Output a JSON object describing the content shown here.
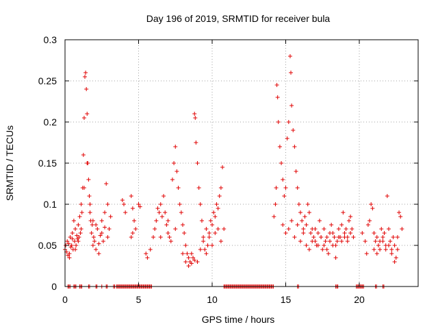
{
  "chart_data": {
    "type": "scatter",
    "title": "Day 196 of 2019, SRMTID for receiver bula",
    "xlabel": "GPS time / hours",
    "ylabel": "SRMTID / TECUs",
    "xlim": [
      0,
      24
    ],
    "ylim": [
      0,
      0.3
    ],
    "xticks": [
      0,
      5,
      10,
      15,
      20
    ],
    "xtick_labels": [
      "0",
      "5",
      "10",
      "15",
      "20"
    ],
    "yticks": [
      0,
      0.05,
      0.1,
      0.15,
      0.2,
      0.25,
      0.3
    ],
    "ytick_labels": [
      "0",
      "0.05",
      "0.1",
      "0.15",
      "0.2",
      "0.25",
      "0.3"
    ],
    "grid": true,
    "legend": "none",
    "marker": "plus",
    "color": "#e00000",
    "series": [
      {
        "name": "SRMTID",
        "points": [
          [
            0.0,
            0.045
          ],
          [
            0.05,
            0.05
          ],
          [
            0.1,
            0.042
          ],
          [
            0.15,
            0.055
          ],
          [
            0.2,
            0.038
          ],
          [
            0.25,
            0.052
          ],
          [
            0.3,
            0.035
          ],
          [
            0.35,
            0.06
          ],
          [
            0.4,
            0.048
          ],
          [
            0.45,
            0.05
          ],
          [
            0.5,
            0.065
          ],
          [
            0.55,
            0.045
          ],
          [
            0.6,
            0.08
          ],
          [
            0.65,
            0.055
          ],
          [
            0.7,
            0.07
          ],
          [
            0.75,
            0.05
          ],
          [
            0.8,
            0.062
          ],
          [
            0.85,
            0.058
          ],
          [
            0.9,
            0.075
          ],
          [
            0.95,
            0.06
          ],
          [
            1.0,
            0.085
          ],
          [
            1.05,
            0.065
          ],
          [
            1.1,
            0.1
          ],
          [
            1.15,
            0.09
          ],
          [
            1.2,
            0.12
          ],
          [
            1.25,
            0.16
          ],
          [
            1.3,
            0.205
          ],
          [
            1.35,
            0.255
          ],
          [
            1.4,
            0.26
          ],
          [
            1.45,
            0.24
          ],
          [
            1.5,
            0.21
          ],
          [
            1.55,
            0.15
          ],
          [
            1.6,
            0.13
          ],
          [
            1.65,
            0.11
          ],
          [
            1.7,
            0.09
          ],
          [
            1.75,
            0.08
          ],
          [
            1.8,
            0.065
          ],
          [
            1.85,
            0.075
          ],
          [
            1.9,
            0.05
          ],
          [
            1.95,
            0.06
          ],
          [
            2.0,
            0.055
          ],
          [
            2.1,
            0.045
          ],
          [
            2.2,
            0.07
          ],
          [
            2.3,
            0.04
          ],
          [
            2.4,
            0.062
          ],
          [
            2.5,
            0.08
          ],
          [
            2.6,
            0.055
          ],
          [
            2.7,
            0.09
          ],
          [
            2.8,
            0.125
          ],
          [
            2.9,
            0.1
          ],
          [
            3.0,
            0.07
          ],
          [
            3.1,
            0.085
          ],
          [
            0.3,
            0.04
          ],
          [
            0.5,
            0.058
          ],
          [
            0.7,
            0.045
          ],
          [
            0.9,
            0.055
          ],
          [
            1.1,
            0.07
          ],
          [
            1.3,
            0.12
          ],
          [
            1.5,
            0.15
          ],
          [
            1.7,
            0.1
          ],
          [
            1.9,
            0.08
          ],
          [
            2.1,
            0.075
          ],
          [
            2.3,
            0.052
          ],
          [
            2.5,
            0.065
          ],
          [
            2.7,
            0.072
          ],
          [
            2.9,
            0.06
          ],
          [
            3.9,
            0.105
          ],
          [
            4.0,
            0.1
          ],
          [
            4.1,
            0.09
          ],
          [
            4.5,
            0.11
          ],
          [
            4.6,
            0.095
          ],
          [
            4.7,
            0.08
          ],
          [
            4.8,
            0.07
          ],
          [
            4.5,
            0.06
          ],
          [
            4.6,
            0.065
          ],
          [
            5.0,
            0.1
          ],
          [
            5.1,
            0.097
          ],
          [
            5.5,
            0.04
          ],
          [
            5.6,
            0.035
          ],
          [
            5.8,
            0.045
          ],
          [
            6.0,
            0.06
          ],
          [
            6.1,
            0.07
          ],
          [
            6.2,
            0.08
          ],
          [
            6.3,
            0.095
          ],
          [
            6.4,
            0.09
          ],
          [
            6.5,
            0.1
          ],
          [
            6.6,
            0.085
          ],
          [
            6.7,
            0.11
          ],
          [
            6.8,
            0.09
          ],
          [
            6.9,
            0.075
          ],
          [
            7.0,
            0.065
          ],
          [
            7.1,
            0.06
          ],
          [
            7.2,
            0.055
          ],
          [
            7.3,
            0.13
          ],
          [
            7.4,
            0.15
          ],
          [
            7.5,
            0.17
          ],
          [
            7.6,
            0.14
          ],
          [
            7.7,
            0.12
          ],
          [
            7.8,
            0.1
          ],
          [
            7.9,
            0.09
          ],
          [
            8.0,
            0.075
          ],
          [
            8.1,
            0.065
          ],
          [
            8.2,
            0.05
          ],
          [
            8.3,
            0.04
          ],
          [
            8.4,
            0.035
          ],
          [
            8.5,
            0.03
          ],
          [
            8.6,
            0.028
          ],
          [
            8.7,
            0.035
          ],
          [
            8.8,
            0.21
          ],
          [
            8.85,
            0.205
          ],
          [
            8.9,
            0.175
          ],
          [
            9.0,
            0.15
          ],
          [
            9.1,
            0.12
          ],
          [
            9.2,
            0.1
          ],
          [
            9.3,
            0.08
          ],
          [
            9.4,
            0.06
          ],
          [
            9.5,
            0.045
          ],
          [
            9.6,
            0.04
          ],
          [
            9.7,
            0.05
          ],
          [
            9.8,
            0.065
          ],
          [
            9.9,
            0.08
          ],
          [
            10.0,
            0.075
          ],
          [
            10.1,
            0.09
          ],
          [
            10.2,
            0.085
          ],
          [
            10.3,
            0.1
          ],
          [
            10.4,
            0.095
          ],
          [
            10.5,
            0.11
          ],
          [
            10.6,
            0.12
          ],
          [
            10.7,
            0.145
          ],
          [
            10.8,
            0.07
          ],
          [
            6.5,
            0.06
          ],
          [
            7.0,
            0.08
          ],
          [
            7.5,
            0.07
          ],
          [
            8.0,
            0.04
          ],
          [
            8.2,
            0.03
          ],
          [
            8.4,
            0.025
          ],
          [
            8.6,
            0.04
          ],
          [
            8.8,
            0.032
          ],
          [
            9.0,
            0.03
          ],
          [
            9.2,
            0.045
          ],
          [
            9.4,
            0.055
          ],
          [
            9.6,
            0.07
          ],
          [
            9.8,
            0.06
          ],
          [
            10.0,
            0.05
          ],
          [
            10.2,
            0.065
          ],
          [
            10.4,
            0.07
          ],
          [
            10.6,
            0.055
          ],
          [
            14.2,
            0.085
          ],
          [
            14.3,
            0.1
          ],
          [
            14.35,
            0.12
          ],
          [
            14.4,
            0.245
          ],
          [
            14.45,
            0.23
          ],
          [
            14.5,
            0.2
          ],
          [
            14.6,
            0.17
          ],
          [
            14.7,
            0.15
          ],
          [
            14.8,
            0.13
          ],
          [
            14.9,
            0.11
          ],
          [
            15.0,
            0.12
          ],
          [
            15.1,
            0.18
          ],
          [
            15.2,
            0.2
          ],
          [
            15.3,
            0.28
          ],
          [
            15.35,
            0.26
          ],
          [
            15.4,
            0.22
          ],
          [
            15.5,
            0.19
          ],
          [
            15.6,
            0.17
          ],
          [
            15.7,
            0.14
          ],
          [
            15.8,
            0.12
          ],
          [
            15.9,
            0.1
          ],
          [
            16.0,
            0.09
          ],
          [
            16.1,
            0.08
          ],
          [
            16.2,
            0.07
          ],
          [
            16.3,
            0.085
          ],
          [
            16.4,
            0.075
          ],
          [
            16.5,
            0.1
          ],
          [
            16.6,
            0.09
          ],
          [
            16.7,
            0.065
          ],
          [
            16.8,
            0.055
          ],
          [
            16.9,
            0.06
          ],
          [
            17.0,
            0.07
          ],
          [
            17.1,
            0.05
          ],
          [
            17.2,
            0.065
          ],
          [
            17.3,
            0.08
          ],
          [
            17.4,
            0.06
          ],
          [
            17.5,
            0.045
          ],
          [
            17.6,
            0.07
          ],
          [
            17.7,
            0.055
          ],
          [
            17.8,
            0.06
          ],
          [
            17.9,
            0.04
          ],
          [
            18.0,
            0.065
          ],
          [
            18.1,
            0.075
          ],
          [
            18.2,
            0.05
          ],
          [
            18.3,
            0.06
          ],
          [
            18.4,
            0.035
          ],
          [
            18.5,
            0.055
          ],
          [
            18.6,
            0.07
          ],
          [
            18.7,
            0.06
          ],
          [
            18.8,
            0.075
          ],
          [
            18.9,
            0.09
          ],
          [
            19.0,
            0.065
          ],
          [
            19.1,
            0.07
          ],
          [
            19.2,
            0.06
          ],
          [
            19.3,
            0.08
          ],
          [
            19.4,
            0.085
          ],
          [
            19.5,
            0.07
          ],
          [
            19.6,
            0.06
          ],
          [
            14.8,
            0.075
          ],
          [
            15.0,
            0.065
          ],
          [
            15.2,
            0.07
          ],
          [
            15.4,
            0.08
          ],
          [
            15.6,
            0.06
          ],
          [
            15.8,
            0.075
          ],
          [
            16.0,
            0.055
          ],
          [
            16.2,
            0.065
          ],
          [
            16.4,
            0.05
          ],
          [
            16.6,
            0.045
          ],
          [
            16.8,
            0.07
          ],
          [
            17.0,
            0.055
          ],
          [
            17.2,
            0.05
          ],
          [
            17.4,
            0.06
          ],
          [
            17.6,
            0.05
          ],
          [
            17.8,
            0.045
          ],
          [
            18.0,
            0.055
          ],
          [
            18.2,
            0.065
          ],
          [
            18.4,
            0.05
          ],
          [
            18.6,
            0.06
          ],
          [
            18.8,
            0.055
          ],
          [
            19.0,
            0.06
          ],
          [
            19.2,
            0.055
          ],
          [
            19.4,
            0.065
          ],
          [
            20.2,
            0.065
          ],
          [
            20.4,
            0.055
          ],
          [
            20.5,
            0.04
          ],
          [
            20.6,
            0.075
          ],
          [
            20.7,
            0.08
          ],
          [
            20.8,
            0.1
          ],
          [
            20.9,
            0.095
          ],
          [
            21.0,
            0.065
          ],
          [
            21.1,
            0.055
          ],
          [
            21.2,
            0.06
          ],
          [
            21.3,
            0.05
          ],
          [
            21.4,
            0.045
          ],
          [
            21.5,
            0.07
          ],
          [
            21.6,
            0.055
          ],
          [
            21.7,
            0.065
          ],
          [
            21.8,
            0.05
          ],
          [
            21.9,
            0.11
          ],
          [
            22.0,
            0.07
          ],
          [
            22.1,
            0.055
          ],
          [
            22.2,
            0.045
          ],
          [
            22.3,
            0.06
          ],
          [
            22.4,
            0.05
          ],
          [
            22.5,
            0.035
          ],
          [
            22.6,
            0.06
          ],
          [
            22.7,
            0.09
          ],
          [
            22.8,
            0.085
          ],
          [
            22.9,
            0.07
          ],
          [
            21.0,
            0.045
          ],
          [
            21.2,
            0.04
          ],
          [
            21.4,
            0.055
          ],
          [
            21.6,
            0.06
          ],
          [
            21.8,
            0.045
          ],
          [
            22.0,
            0.05
          ],
          [
            22.2,
            0.04
          ],
          [
            22.4,
            0.03
          ],
          [
            22.6,
            0.045
          ]
        ]
      },
      {
        "name": "zero",
        "x_ranges": [
          [
            0.2,
            0.35
          ],
          [
            0.6,
            0.75
          ],
          [
            1.0,
            1.2
          ],
          [
            1.6,
            1.7
          ],
          [
            2.1,
            2.2
          ],
          [
            2.5,
            2.55
          ],
          [
            2.8,
            2.9
          ],
          [
            3.3,
            3.4
          ],
          [
            3.5,
            5.9
          ],
          [
            10.8,
            14.2
          ],
          [
            15.8,
            15.9
          ],
          [
            18.4,
            18.6
          ],
          [
            19.8,
            20.3
          ],
          [
            21.1,
            21.2
          ],
          [
            21.6,
            21.7
          ]
        ]
      }
    ]
  }
}
